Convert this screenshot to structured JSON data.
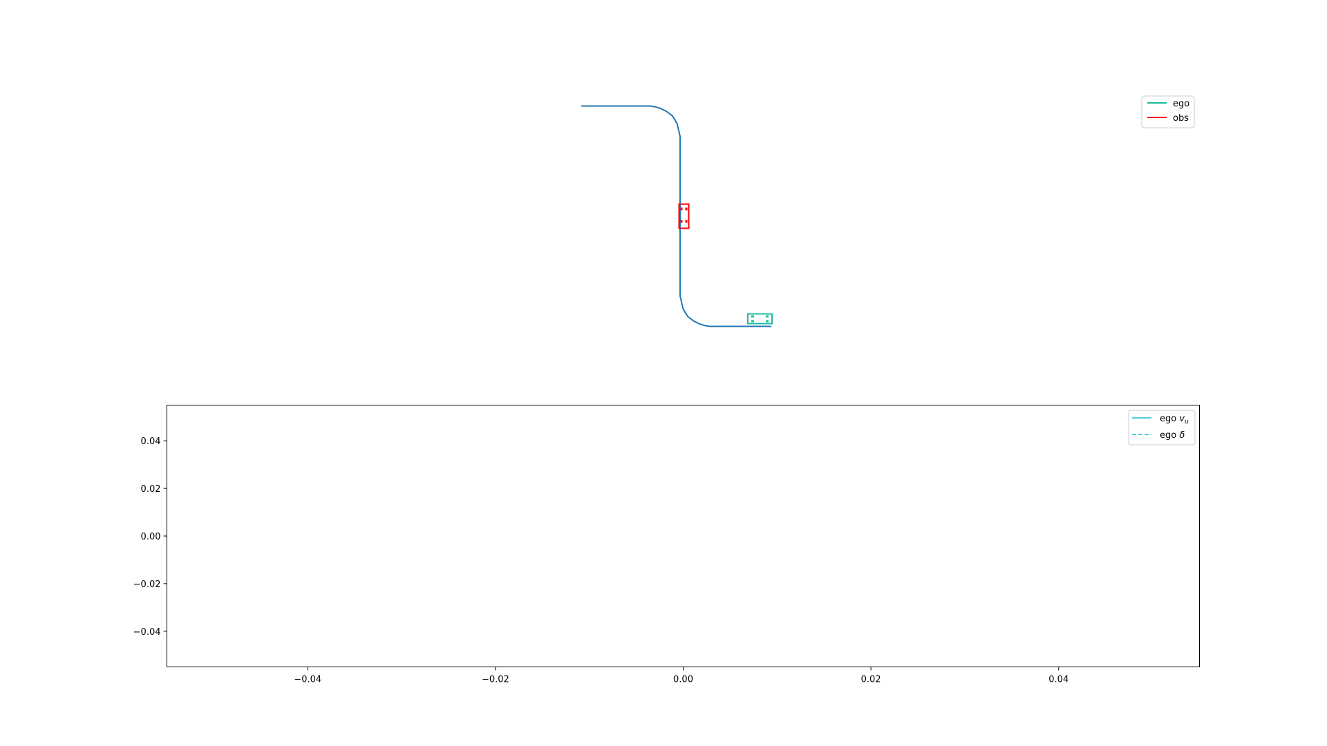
{
  "chart_data": [
    {
      "type": "line",
      "panel": "trajectory",
      "axes_visible": false,
      "series": [
        {
          "name": "ego",
          "color": "#1abc9c",
          "shape": "vehicle-box",
          "orientation": "horizontal",
          "center": [
            10.5,
            -13.5
          ]
        },
        {
          "name": "obs",
          "color": "#ff0000",
          "shape": "vehicle-box",
          "orientation": "vertical",
          "center": [
            0.5,
            0
          ]
        }
      ],
      "reference_path": {
        "color": "#1f77b4",
        "x": [
          -13,
          -4,
          -3.8,
          -3.3,
          -2.6,
          -1.8,
          -1.0,
          -0.4,
          0.0,
          0.0,
          0.0,
          0.4,
          1.0,
          1.8,
          2.6,
          3.3,
          3.8,
          4.0,
          12.0
        ],
        "y": [
          14.5,
          14.5,
          14.49,
          14.4,
          14.2,
          13.8,
          13.2,
          12.2,
          10.5,
          0,
          -10.5,
          -12.2,
          -13.2,
          -13.8,
          -14.2,
          -14.4,
          -14.49,
          -14.5,
          -14.5
        ]
      },
      "legend": {
        "placement": "top-right",
        "entries": [
          {
            "label": "ego",
            "color": "#1abc9c",
            "style": "solid"
          },
          {
            "label": "obs",
            "color": "#ff0000",
            "style": "solid"
          }
        ]
      }
    },
    {
      "type": "line",
      "panel": "controls",
      "xlim": [
        -0.055,
        0.055
      ],
      "ylim": [
        -0.055,
        0.055
      ],
      "xticks": [
        -0.04,
        -0.02,
        0.0,
        0.02,
        0.04
      ],
      "xtick_labels": [
        "−0.04",
        "−0.02",
        "0.00",
        "0.02",
        "0.04"
      ],
      "yticks": [
        0.04,
        0.02,
        0.0,
        -0.02,
        -0.04
      ],
      "ytick_labels": [
        "0.04",
        "0.02",
        "0.00",
        "−0.02",
        "−0.04"
      ],
      "series": [
        {
          "name": "ego v_u",
          "color": "#17becf",
          "style": "solid",
          "x": [],
          "y": []
        },
        {
          "name": "ego δ",
          "color": "#17becf",
          "style": "dashed",
          "x": [],
          "y": []
        }
      ],
      "legend": {
        "placement": "top-right",
        "entries": [
          {
            "prefix": "ego ",
            "symbol": "v",
            "subscript": "u",
            "color": "#17becf",
            "style": "solid"
          },
          {
            "prefix": "ego ",
            "symbol": "δ",
            "subscript": "",
            "color": "#17becf",
            "style": "dashed"
          }
        ]
      }
    }
  ]
}
